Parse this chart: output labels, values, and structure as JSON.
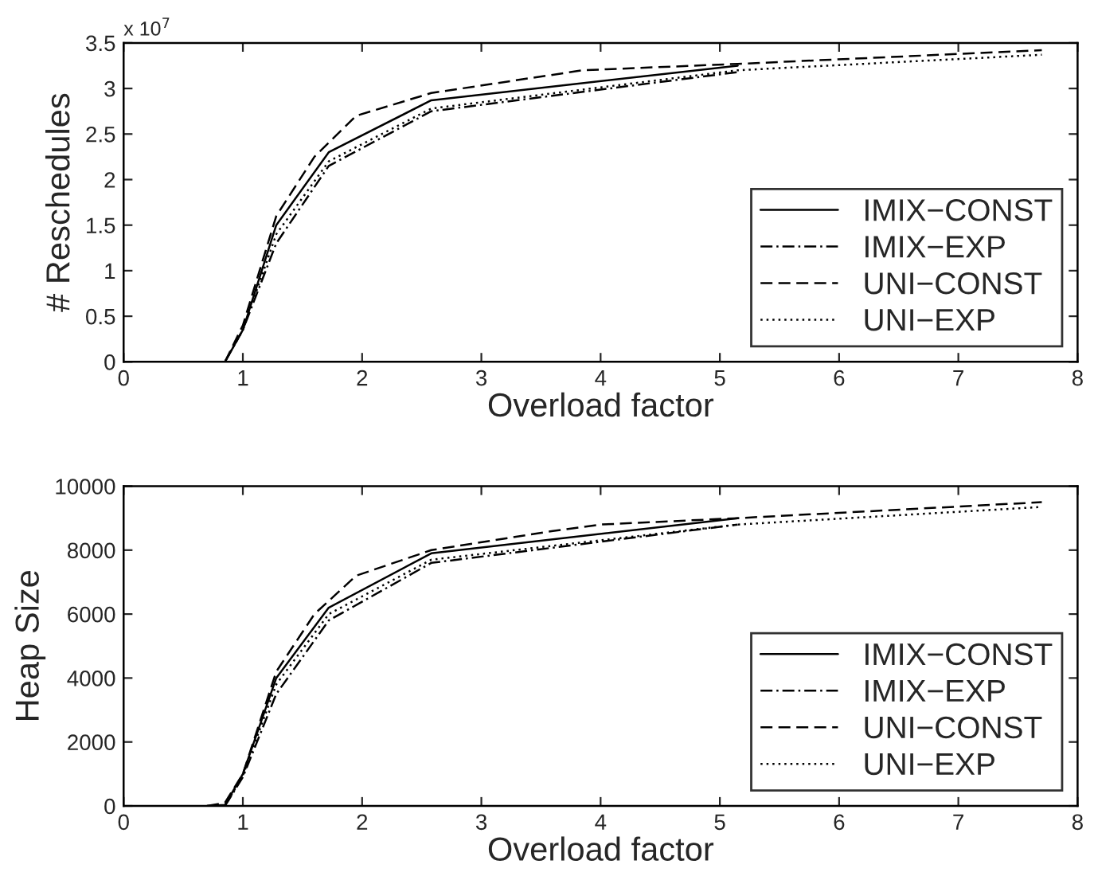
{
  "chart_data": [
    {
      "type": "line",
      "xlabel": "Overload factor",
      "ylabel": "# Reschedules",
      "annotations": [
        "x 10$^{7}$"
      ],
      "xlim": [
        0,
        8
      ],
      "xticks": [
        0,
        1,
        2,
        3,
        4,
        5,
        6,
        7,
        8
      ],
      "ylim": [
        0,
        3.5
      ],
      "yticks": [
        0,
        0.5,
        1,
        1.5,
        2,
        2.5,
        3,
        3.5
      ],
      "grid": false,
      "legend": "bottom right",
      "series": [
        {
          "name": "IMIX−CONST",
          "color": "#000000",
          "line_style": "solid",
          "x": [
            0.7,
            0.85,
            1.0,
            1.28,
            1.72,
            2.58,
            5.15
          ],
          "values": [
            0,
            0,
            0.35,
            1.5,
            2.3,
            2.87,
            3.25
          ]
        },
        {
          "name": "IMIX−EXP",
          "color": "#000000",
          "line_style": "dashdot",
          "x": [
            0.85,
            1.0,
            1.28,
            1.72,
            2.58,
            5.15
          ],
          "values": [
            0,
            0.35,
            1.3,
            2.15,
            2.75,
            3.18
          ]
        },
        {
          "name": "UNI−CONST",
          "color": "#000000",
          "line_style": "dashed",
          "x": [
            0.7,
            0.85,
            1.0,
            1.28,
            1.6,
            1.95,
            2.58,
            3.85,
            5.15,
            7.7
          ],
          "values": [
            0,
            0,
            0.4,
            1.6,
            2.25,
            2.7,
            2.95,
            3.2,
            3.27,
            3.42
          ]
        },
        {
          "name": "UNI−EXP",
          "color": "#000000",
          "line_style": "dotted",
          "x": [
            0.85,
            1.0,
            1.28,
            1.72,
            2.58,
            5.15,
            7.7
          ],
          "values": [
            0,
            0.35,
            1.4,
            2.2,
            2.78,
            3.2,
            3.37
          ]
        }
      ]
    },
    {
      "type": "line",
      "xlabel": "Overload factor",
      "ylabel": "Heap Size",
      "xlim": [
        0,
        8
      ],
      "xticks": [
        0,
        1,
        2,
        3,
        4,
        5,
        6,
        7,
        8
      ],
      "ylim": [
        0,
        10000
      ],
      "yticks": [
        0,
        2000,
        4000,
        6000,
        8000,
        10000
      ],
      "grid": false,
      "legend": "bottom right",
      "series": [
        {
          "name": "IMIX−CONST",
          "color": "#000000",
          "line_style": "solid",
          "x": [
            0.7,
            0.85,
            1.0,
            1.28,
            1.72,
            2.58,
            5.15
          ],
          "values": [
            0,
            30,
            1000,
            4000,
            6200,
            7900,
            9000
          ]
        },
        {
          "name": "IMIX−EXP",
          "color": "#000000",
          "line_style": "dashdot",
          "x": [
            0.85,
            1.0,
            1.28,
            1.72,
            2.58,
            5.15
          ],
          "values": [
            0,
            900,
            3500,
            5800,
            7600,
            8800
          ]
        },
        {
          "name": "UNI−CONST",
          "color": "#000000",
          "line_style": "dashed",
          "x": [
            0.7,
            0.85,
            1.0,
            1.28,
            1.6,
            1.95,
            2.58,
            3.6,
            4.0,
            5.15,
            7.7
          ],
          "values": [
            0,
            100,
            1000,
            4200,
            6000,
            7200,
            8000,
            8600,
            8800,
            9000,
            9500
          ]
        },
        {
          "name": "UNI−EXP",
          "color": "#000000",
          "line_style": "dotted",
          "x": [
            0.85,
            1.0,
            1.28,
            1.72,
            2.58,
            5.15,
            7.7
          ],
          "values": [
            0,
            950,
            3800,
            6000,
            7700,
            8800,
            9350
          ]
        }
      ]
    }
  ]
}
